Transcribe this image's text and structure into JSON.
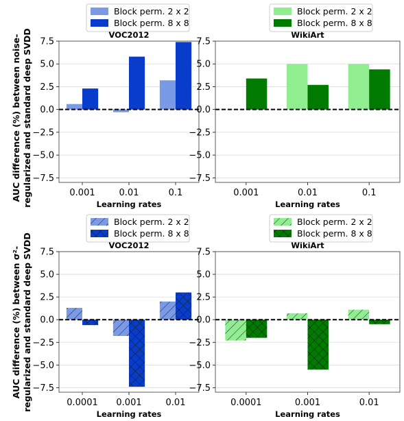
{
  "figure": {
    "row_ylabels": [
      [
        "AUC difference (%) between noise-",
        "regularized and standard deep SVDD"
      ],
      [
        "AUC difference (%) between σ²-",
        "regularized and standard deep SVDD"
      ]
    ]
  },
  "colors": {
    "voc_light": "#7b9ae6",
    "voc_dark": "#0a3ccc",
    "wiki_light": "#90ee90",
    "wiki_dark": "#007a00"
  },
  "chart_data": [
    {
      "type": "bar",
      "title": "VOC2012",
      "xlabel": "Learning rates",
      "ylabel": "",
      "categories": [
        "0.001",
        "0.01",
        "0.1"
      ],
      "series": [
        {
          "name": "Block perm. 2 x 2",
          "values": [
            0.6,
            -0.3,
            3.2
          ],
          "color": "#7b9ae6"
        },
        {
          "name": "Block perm. 8 x 8",
          "values": [
            2.3,
            5.8,
            7.4
          ],
          "color": "#0a3ccc"
        }
      ],
      "ylim": [
        -8,
        7.5
      ],
      "yticks": [
        "7.5",
        "5.0",
        "2.5",
        "0.0",
        "−2.5",
        "−5.0",
        "−7.5"
      ],
      "hatched": false,
      "grid": true,
      "legend": "top-center"
    },
    {
      "type": "bar",
      "title": "WikiArt",
      "xlabel": "Learning rates",
      "ylabel": "",
      "categories": [
        "0.001",
        "0.01",
        "0.1"
      ],
      "series": [
        {
          "name": "Block perm. 2 x 2",
          "values": [
            0.0,
            5.0,
            5.0
          ],
          "color": "#90ee90"
        },
        {
          "name": "Block perm. 8 x 8",
          "values": [
            3.4,
            2.7,
            4.4
          ],
          "color": "#007a00"
        }
      ],
      "ylim": [
        -8,
        7.5
      ],
      "yticks": [
        "7.5",
        "5.0",
        "2.5",
        "0.0",
        "−2.5",
        "−5.0",
        "−7.5"
      ],
      "hatched": false,
      "grid": true,
      "legend": "top-center"
    },
    {
      "type": "bar",
      "title": "VOC2012",
      "xlabel": "Learning rates",
      "ylabel": "",
      "categories": [
        "0.0001",
        "0.001",
        "0.01"
      ],
      "series": [
        {
          "name": "Block perm. 2 x 2",
          "values": [
            1.3,
            -1.8,
            2.0
          ],
          "color": "#7b9ae6"
        },
        {
          "name": "Block perm. 8 x 8",
          "values": [
            -0.6,
            -7.4,
            3.0
          ],
          "color": "#0a3ccc"
        }
      ],
      "ylim": [
        -8,
        7.5
      ],
      "yticks": [
        "7.5",
        "5.0",
        "2.5",
        "0.0",
        "−2.5",
        "−5.0",
        "−7.5"
      ],
      "hatched": true,
      "grid": true,
      "legend": "top-center"
    },
    {
      "type": "bar",
      "title": "WikiArt",
      "xlabel": "Learning rates",
      "ylabel": "",
      "categories": [
        "0.0001",
        "0.001",
        "0.01"
      ],
      "series": [
        {
          "name": "Block perm. 2 x 2",
          "values": [
            -2.3,
            0.7,
            1.1
          ],
          "color": "#90ee90"
        },
        {
          "name": "Block perm. 8 x 8",
          "values": [
            -2.0,
            -5.5,
            -0.5
          ],
          "color": "#007a00"
        }
      ],
      "ylim": [
        -8,
        7.5
      ],
      "yticks": [
        "7.5",
        "5.0",
        "2.5",
        "0.0",
        "−2.5",
        "−5.0",
        "−7.5"
      ],
      "hatched": true,
      "grid": true,
      "legend": "top-center"
    }
  ]
}
